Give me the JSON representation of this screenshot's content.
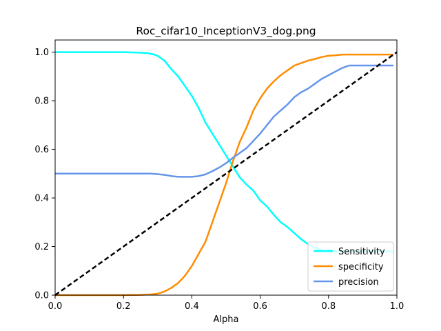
{
  "chart_data": {
    "type": "line",
    "title": "Roc_cifar10_InceptionV3_dog.png",
    "xlabel": "Alpha",
    "ylabel": "",
    "xlim": [
      0,
      1
    ],
    "ylim": [
      0,
      1.05
    ],
    "xticks": [
      "0.0",
      "0.2",
      "0.4",
      "0.6",
      "0.8",
      "1.0"
    ],
    "yticks": [
      "0.0",
      "0.2",
      "0.4",
      "0.6",
      "0.8",
      "1.0"
    ],
    "grid": false,
    "legend_position": "lower right",
    "series": [
      {
        "name": "Sensitivity",
        "color": "#00ffff",
        "x": [
          0,
          0.05,
          0.1,
          0.15,
          0.2,
          0.25,
          0.27,
          0.29,
          0.3,
          0.32,
          0.34,
          0.36,
          0.38,
          0.4,
          0.42,
          0.44,
          0.46,
          0.48,
          0.5,
          0.52,
          0.54,
          0.56,
          0.58,
          0.6,
          0.62,
          0.64,
          0.66,
          0.68,
          0.7,
          0.72,
          0.74,
          0.76,
          0.78,
          0.8,
          0.85,
          0.9,
          0.95,
          0.99
        ],
        "y": [
          1.0,
          1.0,
          1.0,
          1.0,
          1.0,
          0.998,
          0.996,
          0.99,
          0.985,
          0.965,
          0.93,
          0.9,
          0.86,
          0.82,
          0.77,
          0.71,
          0.665,
          0.62,
          0.575,
          0.53,
          0.485,
          0.455,
          0.43,
          0.39,
          0.365,
          0.33,
          0.3,
          0.28,
          0.255,
          0.23,
          0.21,
          0.195,
          0.185,
          0.18,
          0.18,
          0.18,
          0.18,
          0.18
        ]
      },
      {
        "name": "specificity",
        "color": "#ff8c00",
        "x": [
          0,
          0.1,
          0.2,
          0.25,
          0.28,
          0.3,
          0.32,
          0.34,
          0.36,
          0.38,
          0.4,
          0.42,
          0.44,
          0.46,
          0.48,
          0.5,
          0.52,
          0.54,
          0.56,
          0.58,
          0.6,
          0.62,
          0.64,
          0.66,
          0.68,
          0.7,
          0.72,
          0.74,
          0.76,
          0.78,
          0.8,
          0.82,
          0.84,
          0.86,
          0.9,
          0.95,
          0.99
        ],
        "y": [
          0.0,
          0.0,
          0.0,
          0.001,
          0.003,
          0.006,
          0.015,
          0.03,
          0.05,
          0.08,
          0.12,
          0.17,
          0.22,
          0.3,
          0.38,
          0.46,
          0.55,
          0.63,
          0.69,
          0.76,
          0.81,
          0.85,
          0.88,
          0.905,
          0.925,
          0.945,
          0.955,
          0.965,
          0.972,
          0.98,
          0.985,
          0.987,
          0.99,
          0.99,
          0.99,
          0.99,
          0.99
        ]
      },
      {
        "name": "precision",
        "color": "#6495ed",
        "x": [
          0,
          0.1,
          0.2,
          0.25,
          0.28,
          0.3,
          0.32,
          0.34,
          0.36,
          0.38,
          0.4,
          0.42,
          0.44,
          0.46,
          0.48,
          0.5,
          0.52,
          0.54,
          0.56,
          0.58,
          0.6,
          0.62,
          0.64,
          0.66,
          0.68,
          0.7,
          0.72,
          0.74,
          0.76,
          0.78,
          0.8,
          0.82,
          0.84,
          0.86,
          0.9,
          0.95,
          0.99
        ],
        "y": [
          0.5,
          0.5,
          0.5,
          0.5,
          0.5,
          0.498,
          0.495,
          0.49,
          0.487,
          0.487,
          0.487,
          0.49,
          0.497,
          0.51,
          0.525,
          0.543,
          0.565,
          0.585,
          0.605,
          0.635,
          0.665,
          0.7,
          0.735,
          0.76,
          0.785,
          0.815,
          0.835,
          0.85,
          0.87,
          0.89,
          0.905,
          0.92,
          0.935,
          0.945,
          0.945,
          0.945,
          0.945
        ]
      },
      {
        "name": "",
        "color": "#000000",
        "dashed": true,
        "x": [
          0,
          1
        ],
        "y": [
          0,
          1
        ]
      }
    ]
  }
}
